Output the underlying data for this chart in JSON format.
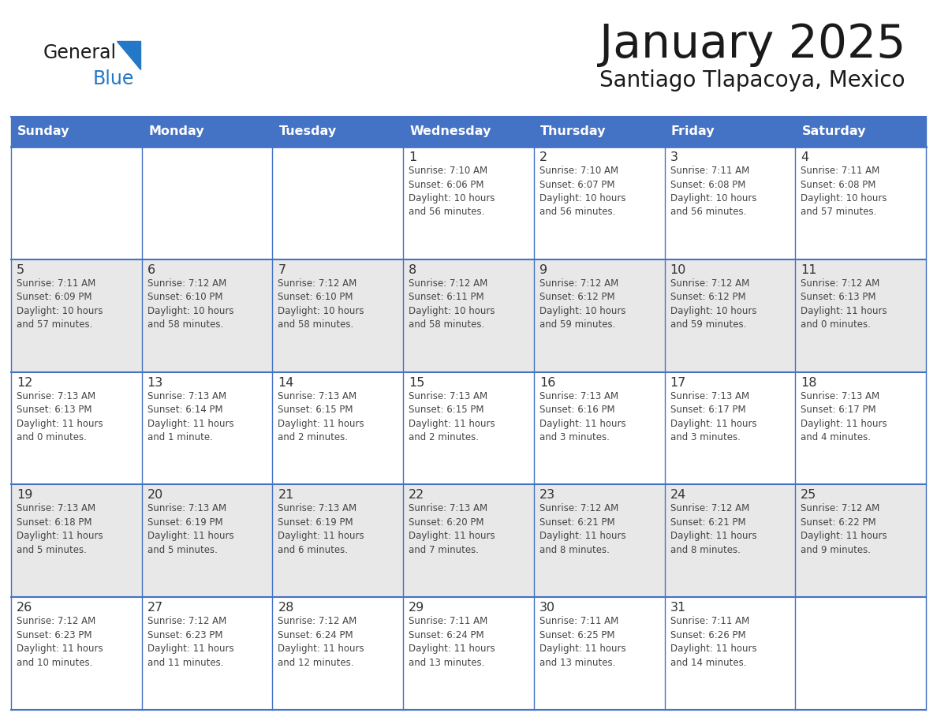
{
  "title": "January 2025",
  "subtitle": "Santiago Tlapacoya, Mexico",
  "header_bg": "#4472C4",
  "header_text_color": "#FFFFFF",
  "cell_bg_odd": "#FFFFFF",
  "cell_bg_even": "#E8E8E8",
  "border_color": "#4472C4",
  "day_names": [
    "Sunday",
    "Monday",
    "Tuesday",
    "Wednesday",
    "Thursday",
    "Friday",
    "Saturday"
  ],
  "title_color": "#1a1a1a",
  "subtitle_color": "#1a1a1a",
  "cell_text_color": "#444444",
  "day_num_color": "#333333",
  "logo_general_color": "#1a1a1a",
  "logo_blue_color": "#2478C8",
  "logo_triangle_color": "#2478C8",
  "weeks": [
    [
      {
        "day": "",
        "info": ""
      },
      {
        "day": "",
        "info": ""
      },
      {
        "day": "",
        "info": ""
      },
      {
        "day": "1",
        "info": "Sunrise: 7:10 AM\nSunset: 6:06 PM\nDaylight: 10 hours\nand 56 minutes."
      },
      {
        "day": "2",
        "info": "Sunrise: 7:10 AM\nSunset: 6:07 PM\nDaylight: 10 hours\nand 56 minutes."
      },
      {
        "day": "3",
        "info": "Sunrise: 7:11 AM\nSunset: 6:08 PM\nDaylight: 10 hours\nand 56 minutes."
      },
      {
        "day": "4",
        "info": "Sunrise: 7:11 AM\nSunset: 6:08 PM\nDaylight: 10 hours\nand 57 minutes."
      }
    ],
    [
      {
        "day": "5",
        "info": "Sunrise: 7:11 AM\nSunset: 6:09 PM\nDaylight: 10 hours\nand 57 minutes."
      },
      {
        "day": "6",
        "info": "Sunrise: 7:12 AM\nSunset: 6:10 PM\nDaylight: 10 hours\nand 58 minutes."
      },
      {
        "day": "7",
        "info": "Sunrise: 7:12 AM\nSunset: 6:10 PM\nDaylight: 10 hours\nand 58 minutes."
      },
      {
        "day": "8",
        "info": "Sunrise: 7:12 AM\nSunset: 6:11 PM\nDaylight: 10 hours\nand 58 minutes."
      },
      {
        "day": "9",
        "info": "Sunrise: 7:12 AM\nSunset: 6:12 PM\nDaylight: 10 hours\nand 59 minutes."
      },
      {
        "day": "10",
        "info": "Sunrise: 7:12 AM\nSunset: 6:12 PM\nDaylight: 10 hours\nand 59 minutes."
      },
      {
        "day": "11",
        "info": "Sunrise: 7:12 AM\nSunset: 6:13 PM\nDaylight: 11 hours\nand 0 minutes."
      }
    ],
    [
      {
        "day": "12",
        "info": "Sunrise: 7:13 AM\nSunset: 6:13 PM\nDaylight: 11 hours\nand 0 minutes."
      },
      {
        "day": "13",
        "info": "Sunrise: 7:13 AM\nSunset: 6:14 PM\nDaylight: 11 hours\nand 1 minute."
      },
      {
        "day": "14",
        "info": "Sunrise: 7:13 AM\nSunset: 6:15 PM\nDaylight: 11 hours\nand 2 minutes."
      },
      {
        "day": "15",
        "info": "Sunrise: 7:13 AM\nSunset: 6:15 PM\nDaylight: 11 hours\nand 2 minutes."
      },
      {
        "day": "16",
        "info": "Sunrise: 7:13 AM\nSunset: 6:16 PM\nDaylight: 11 hours\nand 3 minutes."
      },
      {
        "day": "17",
        "info": "Sunrise: 7:13 AM\nSunset: 6:17 PM\nDaylight: 11 hours\nand 3 minutes."
      },
      {
        "day": "18",
        "info": "Sunrise: 7:13 AM\nSunset: 6:17 PM\nDaylight: 11 hours\nand 4 minutes."
      }
    ],
    [
      {
        "day": "19",
        "info": "Sunrise: 7:13 AM\nSunset: 6:18 PM\nDaylight: 11 hours\nand 5 minutes."
      },
      {
        "day": "20",
        "info": "Sunrise: 7:13 AM\nSunset: 6:19 PM\nDaylight: 11 hours\nand 5 minutes."
      },
      {
        "day": "21",
        "info": "Sunrise: 7:13 AM\nSunset: 6:19 PM\nDaylight: 11 hours\nand 6 minutes."
      },
      {
        "day": "22",
        "info": "Sunrise: 7:13 AM\nSunset: 6:20 PM\nDaylight: 11 hours\nand 7 minutes."
      },
      {
        "day": "23",
        "info": "Sunrise: 7:12 AM\nSunset: 6:21 PM\nDaylight: 11 hours\nand 8 minutes."
      },
      {
        "day": "24",
        "info": "Sunrise: 7:12 AM\nSunset: 6:21 PM\nDaylight: 11 hours\nand 8 minutes."
      },
      {
        "day": "25",
        "info": "Sunrise: 7:12 AM\nSunset: 6:22 PM\nDaylight: 11 hours\nand 9 minutes."
      }
    ],
    [
      {
        "day": "26",
        "info": "Sunrise: 7:12 AM\nSunset: 6:23 PM\nDaylight: 11 hours\nand 10 minutes."
      },
      {
        "day": "27",
        "info": "Sunrise: 7:12 AM\nSunset: 6:23 PM\nDaylight: 11 hours\nand 11 minutes."
      },
      {
        "day": "28",
        "info": "Sunrise: 7:12 AM\nSunset: 6:24 PM\nDaylight: 11 hours\nand 12 minutes."
      },
      {
        "day": "29",
        "info": "Sunrise: 7:11 AM\nSunset: 6:24 PM\nDaylight: 11 hours\nand 13 minutes."
      },
      {
        "day": "30",
        "info": "Sunrise: 7:11 AM\nSunset: 6:25 PM\nDaylight: 11 hours\nand 13 minutes."
      },
      {
        "day": "31",
        "info": "Sunrise: 7:11 AM\nSunset: 6:26 PM\nDaylight: 11 hours\nand 14 minutes."
      },
      {
        "day": "",
        "info": ""
      }
    ]
  ]
}
